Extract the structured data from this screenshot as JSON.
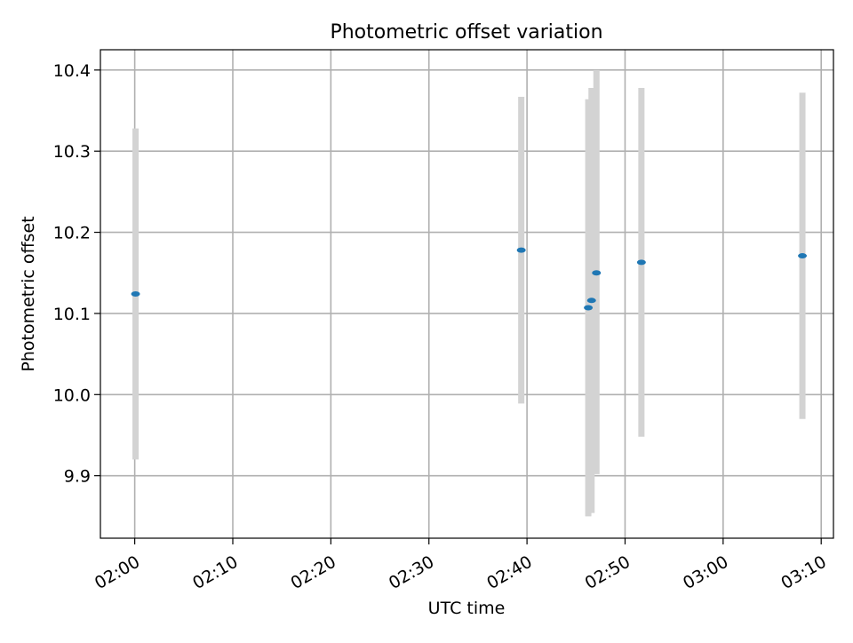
{
  "chart_data": {
    "type": "scatter",
    "title": "Photometric offset variation",
    "xlabel": "UTC time",
    "ylabel": "Photometric offset",
    "grid": true,
    "xlim": [
      "01:56:30",
      "03:11:15"
    ],
    "ylim": [
      9.823,
      10.425
    ],
    "xticks": [
      "02:00",
      "02:10",
      "02:20",
      "02:30",
      "02:40",
      "02:50",
      "03:00",
      "03:10"
    ],
    "yticks": [
      "9.9",
      "10.0",
      "10.1",
      "10.2",
      "10.3",
      "10.4"
    ],
    "colors": {
      "point": "#1f77b4",
      "errorbar": "#d3d3d3",
      "grid": "#b0b0b0"
    },
    "series": [
      {
        "points": [
          {
            "time": "02:00:05",
            "y": 10.124,
            "ymin": 9.92,
            "ymax": 10.328
          },
          {
            "time": "02:39:25",
            "y": 10.178,
            "ymin": 9.989,
            "ymax": 10.367
          },
          {
            "time": "02:46:15",
            "y": 10.107,
            "ymin": 9.85,
            "ymax": 10.364
          },
          {
            "time": "02:46:35",
            "y": 10.116,
            "ymin": 9.854,
            "ymax": 10.378
          },
          {
            "time": "02:47:05",
            "y": 10.15,
            "ymin": 9.902,
            "ymax": 10.4
          },
          {
            "time": "02:51:40",
            "y": 10.163,
            "ymin": 9.948,
            "ymax": 10.378
          },
          {
            "time": "03:08:05",
            "y": 10.171,
            "ymin": 9.97,
            "ymax": 10.372
          }
        ]
      }
    ]
  }
}
